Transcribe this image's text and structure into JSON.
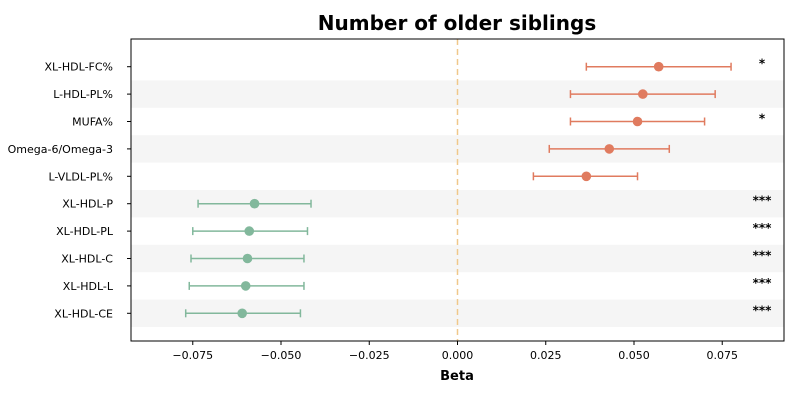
{
  "chart_data": {
    "type": "scatter",
    "subtype": "forest-plot",
    "title": "Number of older siblings",
    "xlabel": "Beta",
    "ylabel": "",
    "xlim": [
      -0.0925,
      0.0925
    ],
    "xticks": [
      -0.075,
      -0.05,
      -0.025,
      0.0,
      0.025,
      0.05,
      0.075
    ],
    "xtick_labels": [
      "−0.075",
      "−0.050",
      "−0.025",
      "0.000",
      "0.025",
      "0.050",
      "0.075"
    ],
    "reference_line": 0.0,
    "grid": false,
    "row_striping": true,
    "colors": {
      "positive": "#e07b5f",
      "negative": "#82b89c",
      "reference": "#f0c88a",
      "stripe": "#f5f5f5"
    },
    "rows": [
      {
        "label": "XL-HDL-FC%",
        "beta": 0.057,
        "ci_low": 0.0365,
        "ci_high": 0.0775,
        "sig": "*"
      },
      {
        "label": "L-HDL-PL%",
        "beta": 0.0525,
        "ci_low": 0.032,
        "ci_high": 0.073,
        "sig": ""
      },
      {
        "label": "MUFA%",
        "beta": 0.051,
        "ci_low": 0.032,
        "ci_high": 0.07,
        "sig": "*"
      },
      {
        "label": "Omega-6/Omega-3",
        "beta": 0.043,
        "ci_low": 0.026,
        "ci_high": 0.06,
        "sig": ""
      },
      {
        "label": "L-VLDL-PL%",
        "beta": 0.0365,
        "ci_low": 0.0215,
        "ci_high": 0.051,
        "sig": ""
      },
      {
        "label": "XL-HDL-P",
        "beta": -0.0575,
        "ci_low": -0.0735,
        "ci_high": -0.0415,
        "sig": "***"
      },
      {
        "label": "XL-HDL-PL",
        "beta": -0.059,
        "ci_low": -0.075,
        "ci_high": -0.0425,
        "sig": "***"
      },
      {
        "label": "XL-HDL-C",
        "beta": -0.0595,
        "ci_low": -0.0755,
        "ci_high": -0.0435,
        "sig": "***"
      },
      {
        "label": "XL-HDL-L",
        "beta": -0.06,
        "ci_low": -0.076,
        "ci_high": -0.0435,
        "sig": "***"
      },
      {
        "label": "XL-HDL-CE",
        "beta": -0.061,
        "ci_low": -0.077,
        "ci_high": -0.0445,
        "sig": "***"
      }
    ]
  }
}
